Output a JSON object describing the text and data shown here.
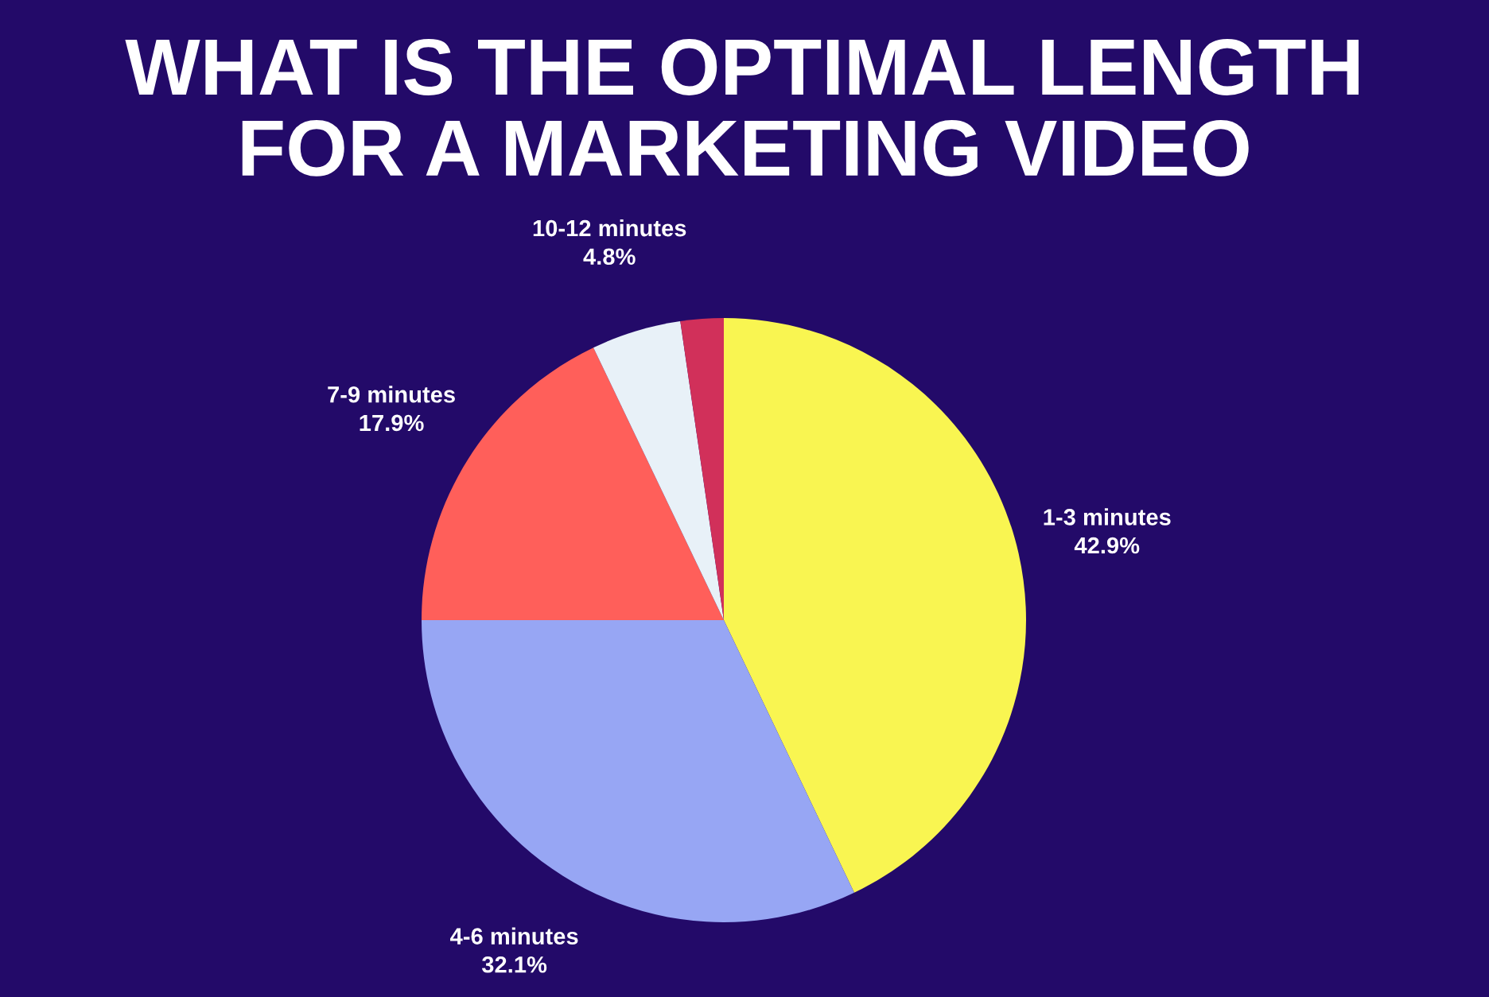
{
  "chart_data": {
    "type": "pie",
    "title": "WHAT IS THE OPTIMAL LENGTH FOR A MARKETING VIDEO",
    "categories": [
      "1-3 minutes",
      "4-6 minutes",
      "7-9 minutes",
      "10-12 minutes",
      null
    ],
    "values": [
      42.9,
      32.1,
      17.9,
      4.8,
      2.3
    ],
    "colors": [
      "#f9f551",
      "#97a6f4",
      "#ff5f5a",
      "#e8f1f8",
      "#d1305a"
    ],
    "value_labels": [
      "42.9%",
      "32.1%",
      "17.9%",
      "4.8%",
      null
    ]
  }
}
